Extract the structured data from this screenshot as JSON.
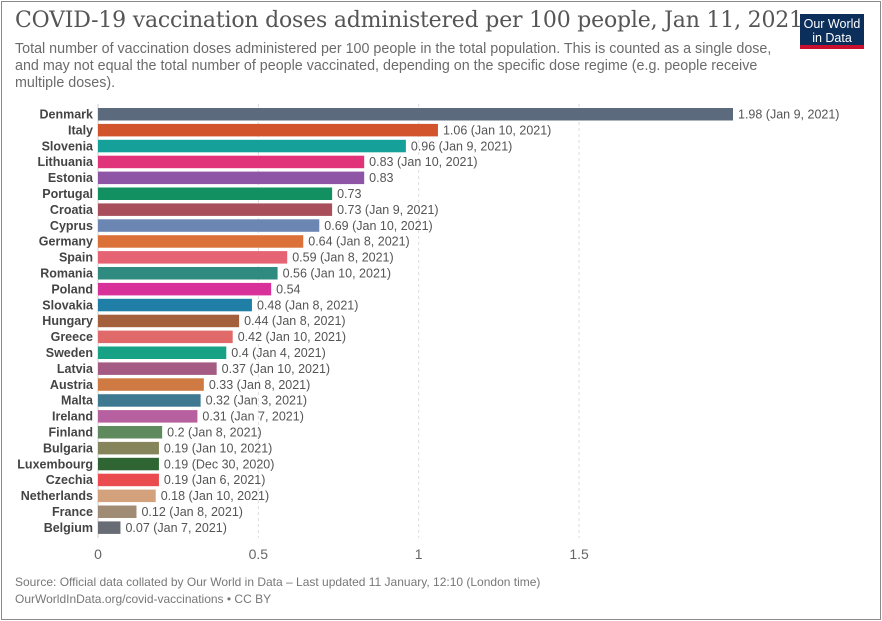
{
  "title": "COVID-19 vaccination doses administered per 100 people, Jan 11, 2021",
  "subtitle": "Total number of vaccination doses administered per 100 people in the total population. This is counted as a single dose, and may not equal the total number of people vaccinated, depending on the specific dose regime (e.g. people receive multiple doses).",
  "logo": {
    "line1": "Our World",
    "line2": "in Data",
    "bg": "#0b2e5a",
    "accent": "#c8102e"
  },
  "source": {
    "line1": "Source: Official data collated by Our World in Data – Last updated 11 January, 12:10 (London time)",
    "line2": "OurWorldInData.org/covid-vaccinations • CC BY"
  },
  "chart_data": {
    "type": "bar",
    "orientation": "horizontal",
    "xlim": [
      0,
      1.98
    ],
    "xticks": [
      {
        "value": 0,
        "label": "0"
      },
      {
        "value": 0.5,
        "label": "0.5"
      },
      {
        "value": 1,
        "label": "1"
      },
      {
        "value": 1.5,
        "label": "1.5"
      }
    ],
    "grid": "vertical-dashed",
    "categories": [
      "Denmark",
      "Italy",
      "Slovenia",
      "Lithuania",
      "Estonia",
      "Portugal",
      "Croatia",
      "Cyprus",
      "Germany",
      "Spain",
      "Romania",
      "Poland",
      "Slovakia",
      "Hungary",
      "Greece",
      "Sweden",
      "Latvia",
      "Austria",
      "Malta",
      "Ireland",
      "Finland",
      "Bulgaria",
      "Luxembourg",
      "Czechia",
      "Netherlands",
      "France",
      "Belgium"
    ],
    "values": [
      1.98,
      1.06,
      0.96,
      0.83,
      0.83,
      0.73,
      0.73,
      0.69,
      0.64,
      0.59,
      0.56,
      0.54,
      0.48,
      0.44,
      0.42,
      0.4,
      0.37,
      0.33,
      0.32,
      0.31,
      0.2,
      0.19,
      0.19,
      0.19,
      0.18,
      0.12,
      0.07
    ],
    "labels": [
      "1.98 (Jan 9, 2021)",
      "1.06 (Jan 10, 2021)",
      "0.96 (Jan 9, 2021)",
      "0.83 (Jan 10, 2021)",
      "0.83",
      "0.73",
      "0.73 (Jan 9, 2021)",
      "0.69 (Jan 10, 2021)",
      "0.64 (Jan 8, 2021)",
      "0.59 (Jan 8, 2021)",
      "0.56 (Jan 10, 2021)",
      "0.54",
      "0.48 (Jan 8, 2021)",
      "0.44 (Jan 8, 2021)",
      "0.42 (Jan 10, 2021)",
      "0.4 (Jan 4, 2021)",
      "0.37 (Jan 10, 2021)",
      "0.33 (Jan 8, 2021)",
      "0.32 (Jan 3, 2021)",
      "0.31 (Jan 7, 2021)",
      "0.2 (Jan 8, 2021)",
      "0.19 (Jan 10, 2021)",
      "0.19 (Dec 30, 2020)",
      "0.19 (Jan 6, 2021)",
      "0.18 (Jan 10, 2021)",
      "0.12 (Jan 8, 2021)",
      "0.07 (Jan 7, 2021)"
    ],
    "colors": [
      "#5b6a7d",
      "#d1542c",
      "#15a09a",
      "#e0337a",
      "#8e55a6",
      "#129062",
      "#a84f5b",
      "#6c86b4",
      "#db7038",
      "#e56372",
      "#2f8a80",
      "#d8319a",
      "#1f7fa6",
      "#a4603c",
      "#e06a6a",
      "#17a286",
      "#a45a82",
      "#ce7a42",
      "#3e7891",
      "#b7609f",
      "#5e8a5e",
      "#85845a",
      "#2f6433",
      "#ea4b4f",
      "#d3a27c",
      "#a08c74",
      "#686c74"
    ]
  }
}
